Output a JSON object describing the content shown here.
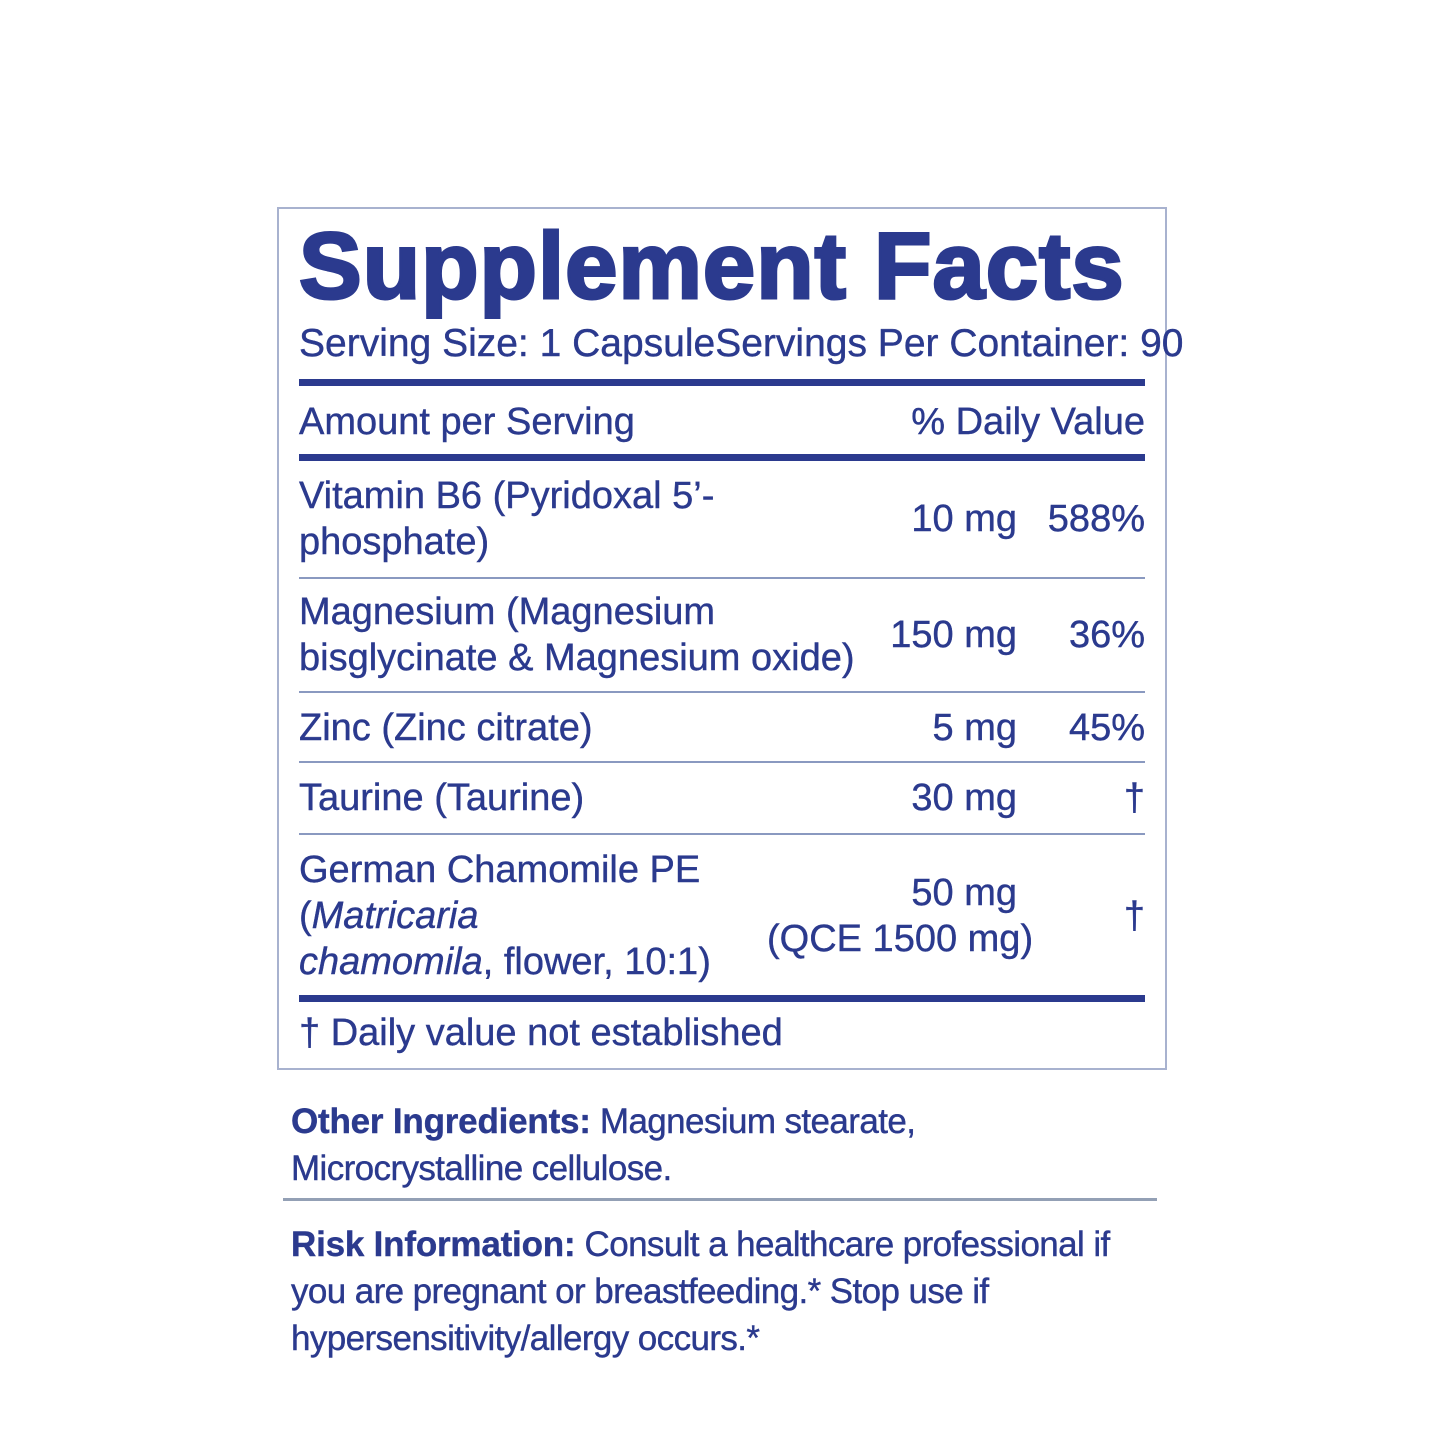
{
  "colors": {
    "text_navy": "#2b3a8e",
    "rule_light": "#8a99c0",
    "border_light": "#a8b2cf",
    "separator": "#93a0b5"
  },
  "panel": {
    "title": "Supplement Facts",
    "serving_size": "Serving Size: 1 Capsule",
    "servings_per_container": "Servings Per Container: 90",
    "columns": {
      "amount_header": "Amount per Serving",
      "daily_value_header": "% Daily Value"
    },
    "rows": [
      {
        "name": "Vitamin B6 (Pyridoxal 5’-phosphate)",
        "amount": "10 mg",
        "daily_value": "588%"
      },
      {
        "name_line1": "Magnesium (Magnesium",
        "name_line2": "bisglycinate & Magnesium oxide)",
        "amount": "150 mg",
        "daily_value": "36%"
      },
      {
        "name": "Zinc (Zinc citrate)",
        "amount": "5 mg",
        "daily_value": "45%"
      },
      {
        "name": "Taurine (Taurine)",
        "amount": "30 mg",
        "daily_value": "†"
      },
      {
        "name_line1_regular": "German Chamomile PE (",
        "name_line1_italic": "Matricaria",
        "name_line2_italic": "chamomila",
        "name_line2_regular": ", flower, 10:1)",
        "amount": "50 mg",
        "amount_qce": "(QCE 1500 mg)",
        "daily_value": "†"
      }
    ],
    "footnote": "† Daily value not established"
  },
  "other_ingredients": {
    "label": "Other Ingredients:",
    "text": " Magnesium stearate, Microcrystalline cellulose."
  },
  "risk_information": {
    "label": "Risk Information:",
    "text": " Consult a healthcare professional if you are pregnant or breastfeeding.* Stop use if hypersensitivity/allergy occurs.*"
  }
}
